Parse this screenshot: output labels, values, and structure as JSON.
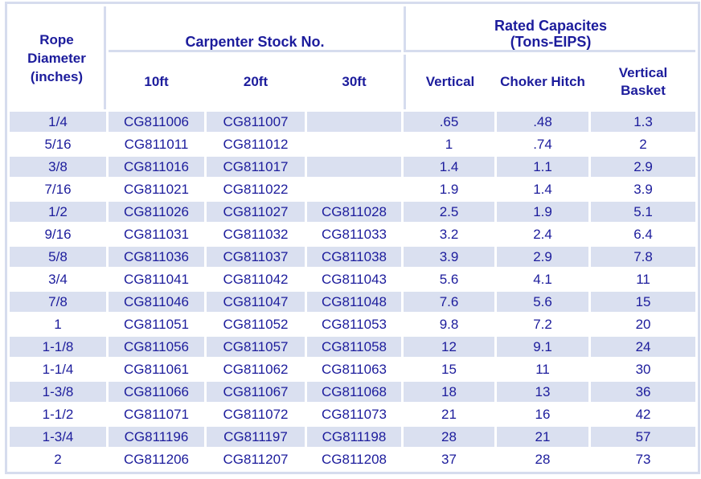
{
  "colors": {
    "text_navy": "#1C1C9C",
    "stripe_lavender": "#DAE0F0",
    "grid_lavender": "#D6DCEE",
    "background": "#FFFFFF"
  },
  "table": {
    "header": {
      "rope_label": "Rope\nDiameter\n(inches)",
      "stock_group": "Carpenter Stock No.",
      "capacity_group": "Rated Capacites\n(Tons-EIPS)",
      "stock_cols": [
        "10ft",
        "20ft",
        "30ft"
      ],
      "capacity_cols": [
        "Vertical",
        "Choker Hitch",
        "Vertical\nBasket"
      ]
    },
    "rows": [
      [
        "1/4",
        "CG811006",
        "CG811007",
        "",
        ".65",
        ".48",
        "1.3"
      ],
      [
        "5/16",
        "CG811011",
        "CG811012",
        "",
        "1",
        ".74",
        "2"
      ],
      [
        "3/8",
        "CG811016",
        "CG811017",
        "",
        "1.4",
        "1.1",
        "2.9"
      ],
      [
        "7/16",
        "CG811021",
        "CG811022",
        "",
        "1.9",
        "1.4",
        "3.9"
      ],
      [
        "1/2",
        "CG811026",
        "CG811027",
        "CG811028",
        "2.5",
        "1.9",
        "5.1"
      ],
      [
        "9/16",
        "CG811031",
        "CG811032",
        "CG811033",
        "3.2",
        "2.4",
        "6.4"
      ],
      [
        "5/8",
        "CG811036",
        "CG811037",
        "CG811038",
        "3.9",
        "2.9",
        "7.8"
      ],
      [
        "3/4",
        "CG811041",
        "CG811042",
        "CG811043",
        "5.6",
        "4.1",
        "11"
      ],
      [
        "7/8",
        "CG811046",
        "CG811047",
        "CG811048",
        "7.6",
        "5.6",
        "15"
      ],
      [
        "1",
        "CG811051",
        "CG811052",
        "CG811053",
        "9.8",
        "7.2",
        "20"
      ],
      [
        "1-1/8",
        "CG811056",
        "CG811057",
        "CG811058",
        "12",
        "9.1",
        "24"
      ],
      [
        "1-1/4",
        "CG811061",
        "CG811062",
        "CG811063",
        "15",
        "11",
        "30"
      ],
      [
        "1-3/8",
        "CG811066",
        "CG811067",
        "CG811068",
        "18",
        "13",
        "36"
      ],
      [
        "1-1/2",
        "CG811071",
        "CG811072",
        "CG811073",
        "21",
        "16",
        "42"
      ],
      [
        "1-3/4",
        "CG811196",
        "CG811197",
        "CG811198",
        "28",
        "21",
        "57"
      ],
      [
        "2",
        "CG811206",
        "CG811207",
        "CG811208",
        "37",
        "28",
        "73"
      ]
    ]
  }
}
